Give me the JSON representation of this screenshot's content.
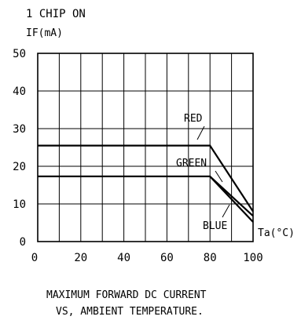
{
  "chart_data": {
    "type": "line",
    "title": "",
    "header_line1": "1 CHIP ON",
    "ylabel": "IF(mA)",
    "xlabel": "Ta(°C)",
    "xlim": [
      0,
      100
    ],
    "ylim": [
      0,
      50
    ],
    "x_ticks": [
      0,
      20,
      40,
      60,
      80,
      100
    ],
    "y_ticks": [
      0,
      10,
      20,
      30,
      40,
      50
    ],
    "grid": true,
    "series": [
      {
        "name": "RED",
        "x": [
          0,
          80,
          100
        ],
        "y": [
          25.5,
          25.5,
          8
        ]
      },
      {
        "name": "GREEN",
        "x": [
          0,
          80,
          100
        ],
        "y": [
          17.3,
          17.3,
          6.8
        ]
      },
      {
        "name": "BLUE",
        "x": [
          0,
          80,
          100
        ],
        "y": [
          17.3,
          17.3,
          5.2
        ]
      }
    ],
    "caption_line1": "MAXIMUM FORWARD DC CURRENT",
    "caption_line2": "VS, AMBIENT TEMPERATURE."
  }
}
